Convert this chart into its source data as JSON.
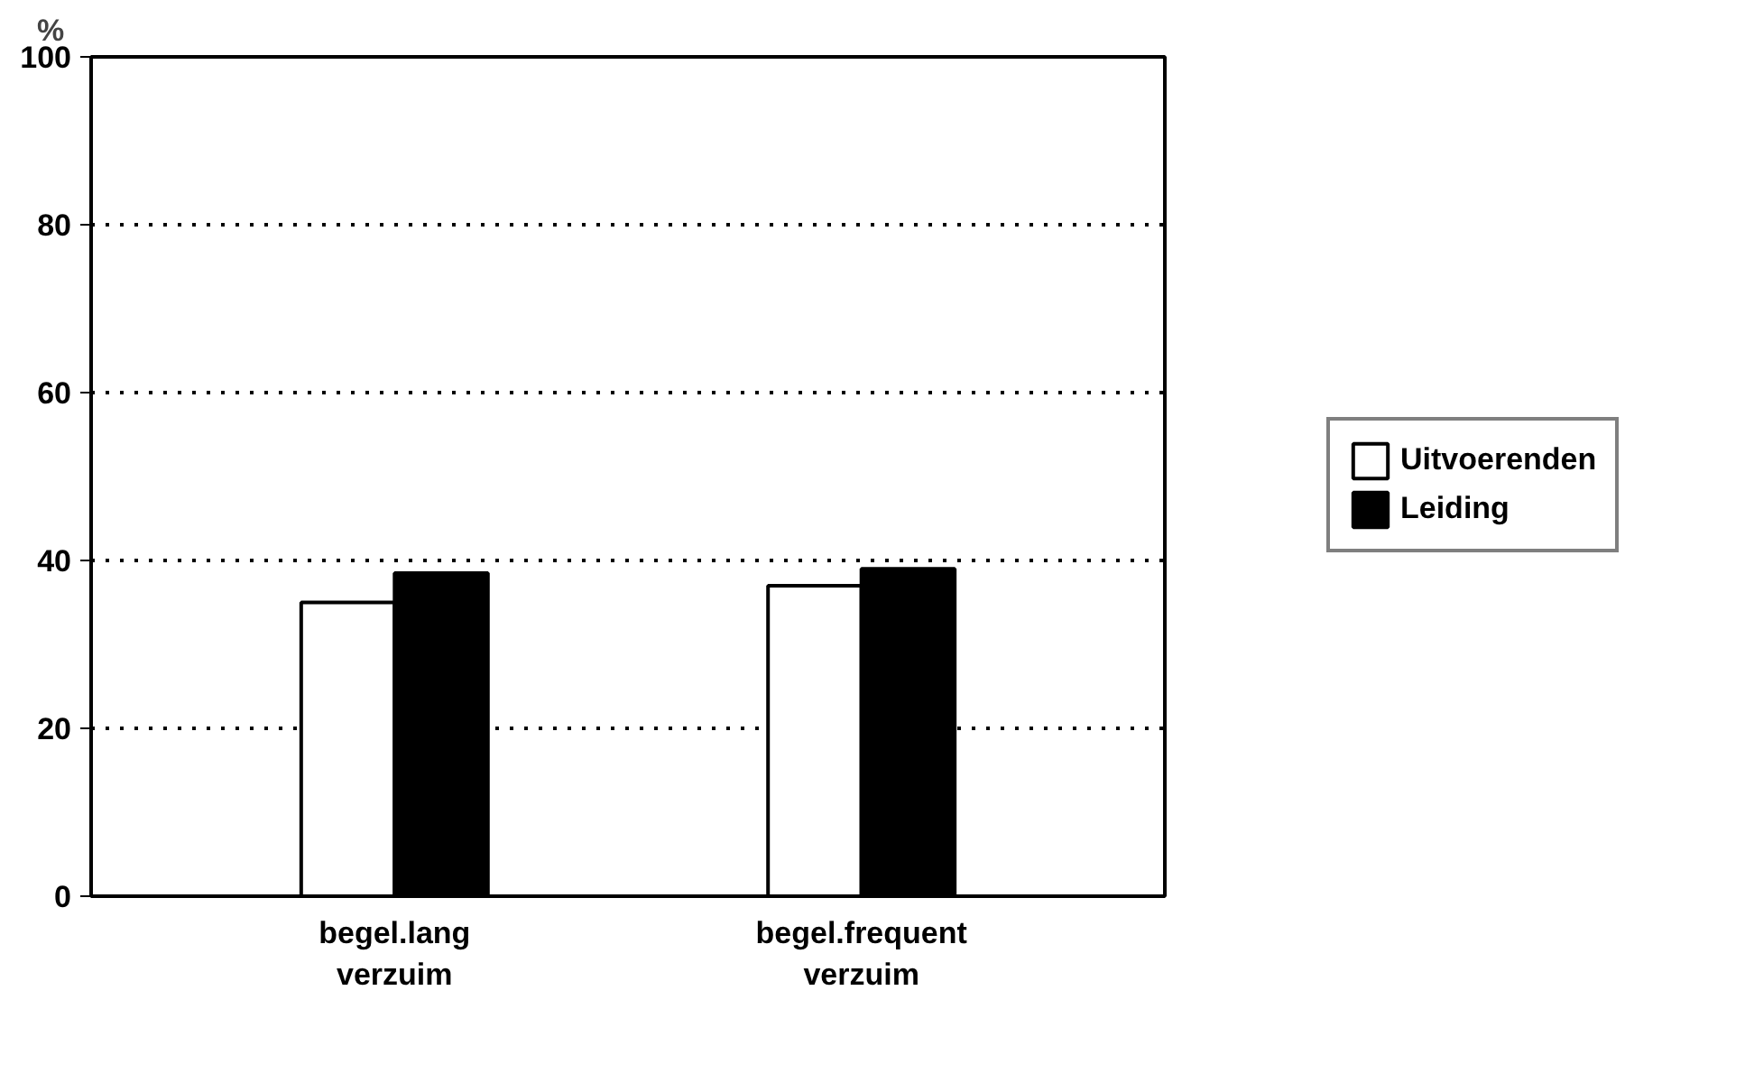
{
  "chart_data": {
    "type": "bar",
    "ylabel": "%",
    "categories": [
      "begel.lang\nverzuim",
      "begel.frequent\nverzuim"
    ],
    "series": [
      {
        "name": "Uitvoerenden",
        "color": "#ffffff",
        "values": [
          35,
          37
        ]
      },
      {
        "name": "Leiding",
        "color": "#000000",
        "values": [
          38.5,
          39
        ]
      }
    ],
    "ylim": [
      0,
      100
    ],
    "yticks": [
      0,
      20,
      40,
      60,
      80,
      100
    ],
    "grid": "y",
    "legend": "right"
  }
}
